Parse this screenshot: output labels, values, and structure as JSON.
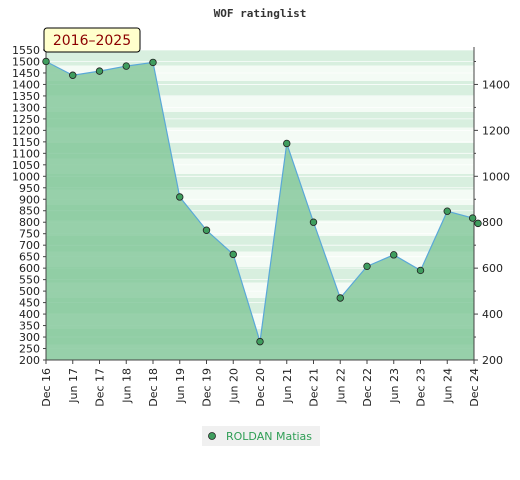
{
  "chart_data": {
    "type": "area",
    "title": "WOF ratinglist",
    "period_label": "2016–2025",
    "x": [
      "Dec 16",
      "Jun 17",
      "Dec 17",
      "Jun 18",
      "Dec 18",
      "Jun 19",
      "Dec 19",
      "Jun 20",
      "Dec 20",
      "Jun 21",
      "Dec 21",
      "Jun 22",
      "Dec 22",
      "Jun 23",
      "Dec 23",
      "Jun 24",
      "Dec 24"
    ],
    "series": [
      {
        "name": "ROLDAN Matias",
        "x": [
          0,
          1,
          2,
          3,
          4,
          5,
          6,
          7,
          8,
          9,
          10,
          11,
          12,
          13,
          14,
          15,
          15.95,
          16.15
        ],
        "values": [
          1500,
          1440,
          1458,
          1480,
          1496,
          910,
          765,
          660,
          280,
          1143,
          800,
          470,
          608,
          658,
          590,
          848,
          818,
          795
        ]
      }
    ],
    "left_axis": {
      "min": 200,
      "max": 1550,
      "step": 50
    },
    "right_axis": {
      "ticks": [
        200,
        400,
        600,
        800,
        1000,
        1200,
        1400
      ]
    },
    "grid": true,
    "legend": "bottom-center",
    "colors": {
      "fill": "#7cc495",
      "line": "#5aa8d8",
      "marker": "#3f9d5e",
      "period_bg": "#ffffcc",
      "period_text": "#8b0000",
      "legend_text": "#2f9e55",
      "legend_bg": "#f0f0f0"
    }
  }
}
